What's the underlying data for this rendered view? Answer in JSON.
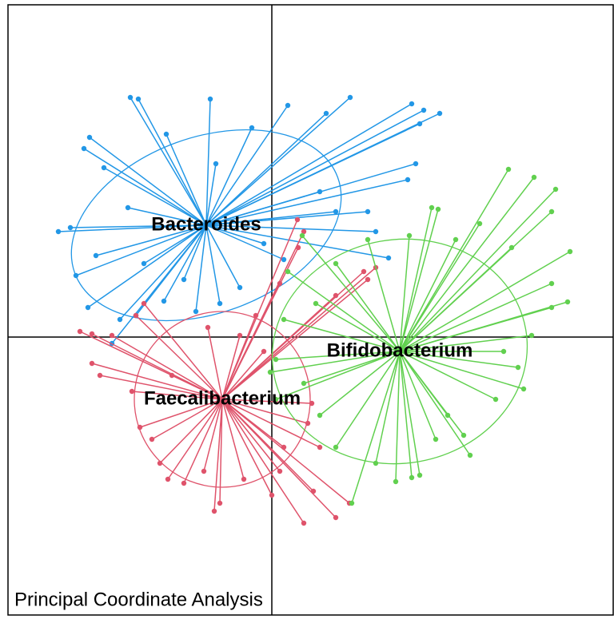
{
  "chart_data": {
    "type": "spider",
    "title": "Principal Coordinate Analysis",
    "xlim": [
      -3.3,
      4.27
    ],
    "ylim": [
      -3.48,
      4.16
    ],
    "series": [
      {
        "name": "Bacteroides",
        "color": "#2297e6",
        "center": [
          -0.82,
          1.4
        ],
        "ellipse": {
          "rx": 1.75,
          "ry": 1.1,
          "angle": 20
        },
        "x": [
          -1.77,
          -1.67,
          -0.77,
          0.98,
          1.75,
          1.9,
          2.1,
          0.68,
          -2.28,
          -2.35,
          -2.67,
          -2.52,
          -2.45,
          -2.3,
          -1.9,
          -2.0,
          -1.7,
          -1.35,
          -0.95,
          -0.4,
          0.15,
          1.46,
          1.3,
          1.2,
          1.7,
          1.8,
          0.2,
          -0.25,
          -1.32,
          -2.1,
          -1.6,
          -1.1,
          -0.65,
          -0.1,
          0.8,
          1.85,
          -1.8,
          -2.2,
          0.6,
          -0.7
        ],
        "y": [
          3.0,
          2.98,
          2.98,
          3.0,
          2.92,
          2.84,
          2.8,
          2.8,
          2.5,
          2.36,
          1.32,
          1.37,
          0.77,
          0.37,
          0.22,
          -0.08,
          0.27,
          0.45,
          0.32,
          0.62,
          0.97,
          0.99,
          1.32,
          1.57,
          1.97,
          2.17,
          2.9,
          2.62,
          2.54,
          2.12,
          0.92,
          0.72,
          0.42,
          1.17,
          1.57,
          2.67,
          1.62,
          1.02,
          1.82,
          2.17
        ]
      },
      {
        "name": "Faecalibacterium",
        "color": "#df536b",
        "center": [
          -0.62,
          -0.78
        ],
        "ellipse": {
          "rx": 1.1,
          "ry": 1.1,
          "angle": 0
        },
        "x": [
          -2.4,
          -2.25,
          -2.25,
          -2.15,
          -1.7,
          -1.6,
          0.32,
          0.4,
          0.33,
          1.15,
          1.3,
          1.2,
          0.8,
          0.1,
          -0.2,
          -0.72,
          -0.65,
          0.0,
          0.4,
          0.8,
          0.97,
          0.52,
          -1.4,
          -1.5,
          -1.1,
          -0.85,
          -0.35,
          0.15,
          0.45,
          0.5,
          -0.1,
          -1.25,
          -1.75,
          -1.65,
          -0.8,
          -0.4,
          -2.0,
          -1.3,
          0.1,
          0.6
        ],
        "y": [
          0.07,
          0.04,
          -0.33,
          -0.48,
          0.27,
          0.42,
          1.47,
          1.32,
          1.12,
          0.82,
          0.87,
          0.72,
          0.52,
          0.67,
          0.27,
          -2.18,
          -2.08,
          -1.98,
          -2.33,
          -2.26,
          -2.08,
          -1.93,
          -1.58,
          -1.28,
          -1.83,
          -1.68,
          -1.78,
          -1.38,
          -1.08,
          -0.83,
          -0.18,
          -0.48,
          -0.68,
          -1.13,
          0.12,
          0.02,
          0.02,
          -1.78,
          -1.68,
          -1.38
        ]
      },
      {
        "name": "Bifidobacterium",
        "color": "#61d04f",
        "center": [
          1.6,
          -0.18
        ],
        "ellipse": {
          "rx": 1.6,
          "ry": 1.4,
          "angle": 10
        },
        "x": [
          2.96,
          3.28,
          3.55,
          2.0,
          2.08,
          3.5,
          3.73,
          3.7,
          3.5,
          1.72,
          0.38,
          0.2,
          0.05,
          -0.02,
          0.05,
          1.0,
          1.55,
          1.75,
          1.85,
          2.48,
          2.4,
          3.15,
          3.08,
          3.5,
          3.0,
          2.6,
          0.8,
          0.55,
          0.4,
          0.8,
          1.3,
          2.2,
          2.8,
          3.25,
          2.3,
          1.2,
          0.15,
          0.6,
          2.05,
          2.9
        ],
        "y": [
          2.1,
          2.0,
          1.85,
          1.62,
          1.6,
          1.57,
          1.07,
          0.44,
          0.37,
          1.27,
          1.27,
          0.82,
          -0.28,
          -0.44,
          -0.78,
          -2.08,
          -1.81,
          -1.76,
          -1.73,
          -1.48,
          -1.23,
          -0.65,
          -0.38,
          0.67,
          1.12,
          1.42,
          0.92,
          0.42,
          -0.58,
          -1.38,
          -1.58,
          -0.98,
          -0.78,
          0.02,
          1.22,
          1.22,
          0.22,
          -0.98,
          -1.28,
          -0.18
        ]
      }
    ]
  }
}
